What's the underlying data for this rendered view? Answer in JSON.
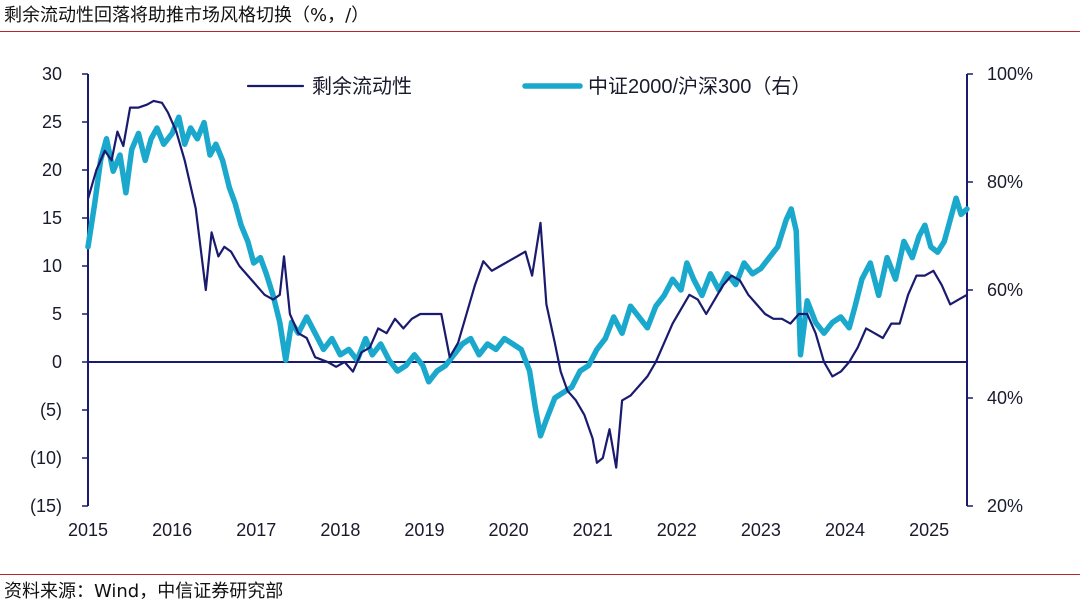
{
  "title": "剩余流动性回落将助推市场风格切换（%，/）",
  "source": "资料来源：Wind，中信证券研究部",
  "colors": {
    "axis": "#1a1a6e",
    "series1": "#1a1a6e",
    "series2": "#1aa8cc",
    "rule": "#b5262e"
  },
  "chart_data": {
    "type": "line",
    "title": "剩余流动性回落将助推市场风格切换（%，/）",
    "x_range": [
      2015,
      2025.45
    ],
    "x_ticks": [
      "2015",
      "2016",
      "2017",
      "2018",
      "2019",
      "2020",
      "2021",
      "2022",
      "2023",
      "2024",
      "2025"
    ],
    "y_left": {
      "range": [
        -15,
        30
      ],
      "ticks": [
        "30",
        "25",
        "20",
        "15",
        "10",
        "5",
        "0",
        "(5)",
        "(10)",
        "(15)"
      ]
    },
    "y_right": {
      "range": [
        20,
        100
      ],
      "ticks": [
        "100%",
        "80%",
        "60%",
        "40%",
        "20%"
      ]
    },
    "legend": {
      "placement": "top",
      "items": [
        "剩余流动性",
        "中证2000/沪深300（右）"
      ]
    },
    "series": [
      {
        "name": "剩余流动性",
        "axis": "left",
        "points": [
          [
            2015.0,
            17.0
          ],
          [
            2015.1,
            20.0
          ],
          [
            2015.2,
            22.0
          ],
          [
            2015.28,
            21.0
          ],
          [
            2015.35,
            24.0
          ],
          [
            2015.42,
            22.5
          ],
          [
            2015.5,
            26.5
          ],
          [
            2015.6,
            26.5
          ],
          [
            2015.7,
            26.8
          ],
          [
            2015.78,
            27.2
          ],
          [
            2015.88,
            27.0
          ],
          [
            2015.95,
            26.0
          ],
          [
            2016.05,
            24.0
          ],
          [
            2016.15,
            21.0
          ],
          [
            2016.28,
            16.0
          ],
          [
            2016.4,
            7.5
          ],
          [
            2016.47,
            13.5
          ],
          [
            2016.55,
            11.0
          ],
          [
            2016.62,
            12.0
          ],
          [
            2016.7,
            11.5
          ],
          [
            2016.8,
            10.0
          ],
          [
            2016.9,
            9.0
          ],
          [
            2017.0,
            8.0
          ],
          [
            2017.1,
            7.0
          ],
          [
            2017.2,
            6.5
          ],
          [
            2017.28,
            7.0
          ],
          [
            2017.33,
            11.0
          ],
          [
            2017.4,
            5.0
          ],
          [
            2017.5,
            3.0
          ],
          [
            2017.6,
            2.5
          ],
          [
            2017.7,
            0.5
          ],
          [
            2017.85,
            0.0
          ],
          [
            2017.95,
            -0.5
          ],
          [
            2018.05,
            0.0
          ],
          [
            2018.15,
            -1.0
          ],
          [
            2018.25,
            1.0
          ],
          [
            2018.35,
            1.5
          ],
          [
            2018.45,
            3.5
          ],
          [
            2018.55,
            3.0
          ],
          [
            2018.65,
            4.5
          ],
          [
            2018.75,
            3.5
          ],
          [
            2018.85,
            4.5
          ],
          [
            2018.95,
            5.0
          ],
          [
            2019.1,
            5.0
          ],
          [
            2019.2,
            5.0
          ],
          [
            2019.3,
            0.5
          ],
          [
            2019.4,
            2.0
          ],
          [
            2019.5,
            5.0
          ],
          [
            2019.6,
            8.0
          ],
          [
            2019.7,
            10.5
          ],
          [
            2019.8,
            9.5
          ],
          [
            2019.9,
            10.0
          ],
          [
            2020.0,
            10.5
          ],
          [
            2020.1,
            11.0
          ],
          [
            2020.2,
            11.5
          ],
          [
            2020.28,
            9.0
          ],
          [
            2020.38,
            14.5
          ],
          [
            2020.45,
            6.0
          ],
          [
            2020.55,
            2.0
          ],
          [
            2020.62,
            -1.0
          ],
          [
            2020.7,
            -3.0
          ],
          [
            2020.8,
            -4.0
          ],
          [
            2020.9,
            -5.5
          ],
          [
            2021.0,
            -8.0
          ],
          [
            2021.05,
            -10.5
          ],
          [
            2021.12,
            -10.0
          ],
          [
            2021.2,
            -7.0
          ],
          [
            2021.28,
            -11.0
          ],
          [
            2021.35,
            -4.0
          ],
          [
            2021.45,
            -3.5
          ],
          [
            2021.55,
            -2.5
          ],
          [
            2021.65,
            -1.5
          ],
          [
            2021.75,
            0.0
          ],
          [
            2021.85,
            2.0
          ],
          [
            2021.95,
            4.0
          ],
          [
            2022.05,
            5.5
          ],
          [
            2022.15,
            7.0
          ],
          [
            2022.25,
            6.5
          ],
          [
            2022.35,
            5.0
          ],
          [
            2022.45,
            6.5
          ],
          [
            2022.55,
            8.0
          ],
          [
            2022.65,
            9.0
          ],
          [
            2022.75,
            8.5
          ],
          [
            2022.85,
            7.0
          ],
          [
            2022.95,
            6.0
          ],
          [
            2023.05,
            5.0
          ],
          [
            2023.15,
            4.5
          ],
          [
            2023.25,
            4.5
          ],
          [
            2023.35,
            4.0
          ],
          [
            2023.45,
            5.0
          ],
          [
            2023.55,
            5.0
          ],
          [
            2023.65,
            3.0
          ],
          [
            2023.75,
            0.0
          ],
          [
            2023.85,
            -1.5
          ],
          [
            2023.95,
            -1.0
          ],
          [
            2024.05,
            0.0
          ],
          [
            2024.15,
            1.5
          ],
          [
            2024.25,
            3.5
          ],
          [
            2024.35,
            3.0
          ],
          [
            2024.45,
            2.5
          ],
          [
            2024.55,
            4.0
          ],
          [
            2024.65,
            4.0
          ],
          [
            2024.75,
            7.0
          ],
          [
            2024.85,
            9.0
          ],
          [
            2024.95,
            9.0
          ],
          [
            2025.05,
            9.5
          ],
          [
            2025.15,
            8.0
          ],
          [
            2025.25,
            6.0
          ],
          [
            2025.35,
            6.5
          ],
          [
            2025.45,
            7.0
          ]
        ]
      },
      {
        "name": "中证2000/沪深300（右）",
        "axis": "right",
        "points": [
          [
            2015.0,
            68
          ],
          [
            2015.08,
            76
          ],
          [
            2015.15,
            84
          ],
          [
            2015.22,
            88
          ],
          [
            2015.3,
            82
          ],
          [
            2015.38,
            85
          ],
          [
            2015.45,
            78
          ],
          [
            2015.52,
            86
          ],
          [
            2015.6,
            89
          ],
          [
            2015.68,
            84
          ],
          [
            2015.75,
            88
          ],
          [
            2015.82,
            90
          ],
          [
            2015.9,
            87
          ],
          [
            2016.0,
            89
          ],
          [
            2016.08,
            92
          ],
          [
            2016.15,
            87
          ],
          [
            2016.22,
            90
          ],
          [
            2016.3,
            88
          ],
          [
            2016.38,
            91
          ],
          [
            2016.45,
            85
          ],
          [
            2016.52,
            87
          ],
          [
            2016.6,
            84
          ],
          [
            2016.68,
            79
          ],
          [
            2016.75,
            76
          ],
          [
            2016.82,
            72
          ],
          [
            2016.9,
            69
          ],
          [
            2016.97,
            65
          ],
          [
            2017.05,
            66
          ],
          [
            2017.12,
            63
          ],
          [
            2017.2,
            59
          ],
          [
            2017.28,
            54
          ],
          [
            2017.35,
            47
          ],
          [
            2017.42,
            54
          ],
          [
            2017.5,
            52
          ],
          [
            2017.6,
            55
          ],
          [
            2017.7,
            52
          ],
          [
            2017.8,
            49
          ],
          [
            2017.9,
            51
          ],
          [
            2018.0,
            48
          ],
          [
            2018.1,
            49
          ],
          [
            2018.2,
            47
          ],
          [
            2018.3,
            51
          ],
          [
            2018.38,
            48
          ],
          [
            2018.48,
            50
          ],
          [
            2018.58,
            47
          ],
          [
            2018.68,
            45
          ],
          [
            2018.78,
            46
          ],
          [
            2018.88,
            48
          ],
          [
            2018.98,
            46
          ],
          [
            2019.05,
            43
          ],
          [
            2019.15,
            45
          ],
          [
            2019.25,
            46
          ],
          [
            2019.35,
            48
          ],
          [
            2019.45,
            50
          ],
          [
            2019.55,
            51
          ],
          [
            2019.65,
            48
          ],
          [
            2019.75,
            50
          ],
          [
            2019.85,
            49
          ],
          [
            2019.95,
            51
          ],
          [
            2020.05,
            50
          ],
          [
            2020.15,
            49
          ],
          [
            2020.25,
            45
          ],
          [
            2020.32,
            38
          ],
          [
            2020.38,
            33
          ],
          [
            2020.45,
            36
          ],
          [
            2020.55,
            40
          ],
          [
            2020.65,
            41
          ],
          [
            2020.75,
            42
          ],
          [
            2020.85,
            45
          ],
          [
            2020.95,
            46
          ],
          [
            2021.05,
            49
          ],
          [
            2021.15,
            51
          ],
          [
            2021.25,
            55
          ],
          [
            2021.35,
            52
          ],
          [
            2021.45,
            57
          ],
          [
            2021.55,
            55
          ],
          [
            2021.65,
            53
          ],
          [
            2021.75,
            57
          ],
          [
            2021.85,
            59
          ],
          [
            2021.95,
            62
          ],
          [
            2022.05,
            60
          ],
          [
            2022.12,
            65
          ],
          [
            2022.2,
            62
          ],
          [
            2022.3,
            59
          ],
          [
            2022.4,
            63
          ],
          [
            2022.5,
            60
          ],
          [
            2022.6,
            63
          ],
          [
            2022.7,
            61
          ],
          [
            2022.8,
            65
          ],
          [
            2022.9,
            63
          ],
          [
            2023.0,
            64
          ],
          [
            2023.1,
            66
          ],
          [
            2023.2,
            68
          ],
          [
            2023.3,
            73
          ],
          [
            2023.36,
            75
          ],
          [
            2023.42,
            71
          ],
          [
            2023.47,
            48
          ],
          [
            2023.55,
            58
          ],
          [
            2023.65,
            54
          ],
          [
            2023.75,
            52
          ],
          [
            2023.85,
            54
          ],
          [
            2023.95,
            55
          ],
          [
            2024.05,
            53
          ],
          [
            2024.12,
            57
          ],
          [
            2024.2,
            62
          ],
          [
            2024.3,
            65
          ],
          [
            2024.4,
            59
          ],
          [
            2024.5,
            66
          ],
          [
            2024.6,
            62
          ],
          [
            2024.7,
            69
          ],
          [
            2024.8,
            66
          ],
          [
            2024.88,
            70
          ],
          [
            2024.95,
            72
          ],
          [
            2025.02,
            68
          ],
          [
            2025.1,
            67
          ],
          [
            2025.18,
            69
          ],
          [
            2025.25,
            73
          ],
          [
            2025.32,
            77
          ],
          [
            2025.38,
            74
          ],
          [
            2025.45,
            75
          ]
        ]
      }
    ]
  }
}
